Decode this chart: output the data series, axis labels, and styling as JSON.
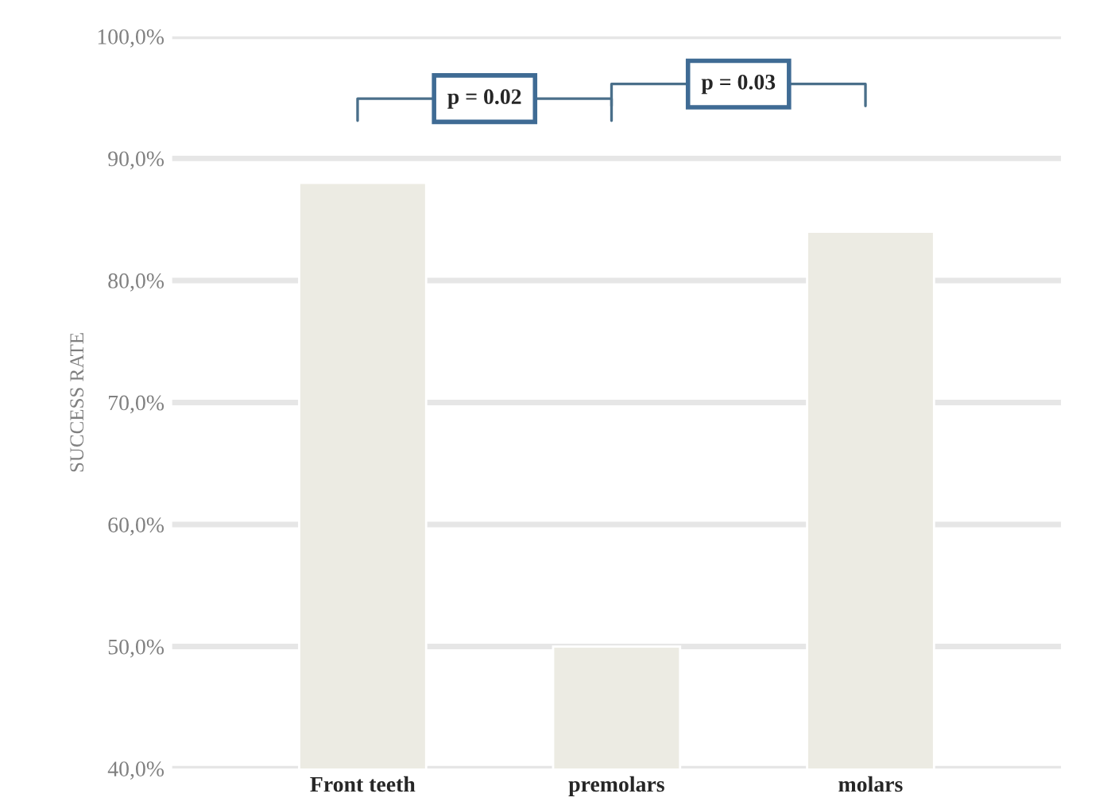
{
  "chart_data": {
    "type": "bar",
    "ylabel": "SUCCESS RATE",
    "categories": [
      "Front teeth",
      "premolars",
      "molars"
    ],
    "values": [
      88,
      50,
      84
    ],
    "color": "#ecebe3",
    "ylim": [
      40,
      100
    ],
    "yticks": [
      {
        "value": 40,
        "label": "40,0%"
      },
      {
        "value": 50,
        "label": "50,0%"
      },
      {
        "value": 60,
        "label": "60,0%"
      },
      {
        "value": 70,
        "label": "70,0%"
      },
      {
        "value": 80,
        "label": "80,0%"
      },
      {
        "value": 90,
        "label": "90,0%"
      },
      {
        "value": 100,
        "label": "100,0%"
      }
    ],
    "grid": "y",
    "annotations": [
      "p = 0.02",
      "p = 0.03"
    ]
  }
}
